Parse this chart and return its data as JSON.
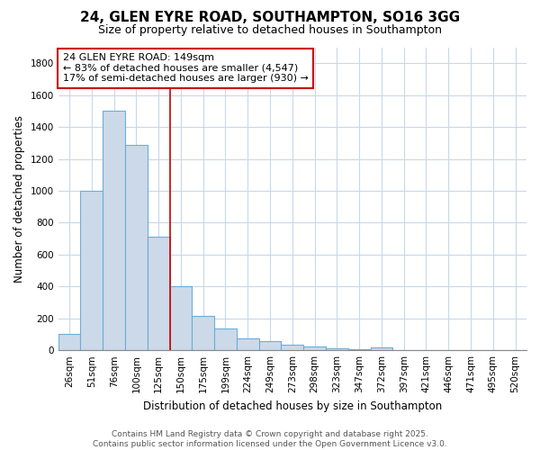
{
  "title_line1": "24, GLEN EYRE ROAD, SOUTHAMPTON, SO16 3GG",
  "title_line2": "Size of property relative to detached houses in Southampton",
  "xlabel": "Distribution of detached houses by size in Southampton",
  "ylabel": "Number of detached properties",
  "bar_color": "#ccd9e8",
  "bar_edge_color": "#6baed6",
  "categories": [
    "26sqm",
    "51sqm",
    "76sqm",
    "100sqm",
    "125sqm",
    "150sqm",
    "175sqm",
    "199sqm",
    "224sqm",
    "249sqm",
    "273sqm",
    "298sqm",
    "323sqm",
    "347sqm",
    "372sqm",
    "397sqm",
    "421sqm",
    "446sqm",
    "471sqm",
    "495sqm",
    "520sqm"
  ],
  "values": [
    105,
    1000,
    1500,
    1290,
    710,
    400,
    215,
    135,
    75,
    60,
    35,
    25,
    15,
    5,
    18,
    0,
    0,
    0,
    0,
    0,
    0
  ],
  "ylim": [
    0,
    1900
  ],
  "yticks": [
    0,
    200,
    400,
    600,
    800,
    1000,
    1200,
    1400,
    1600,
    1800
  ],
  "property_line_index": 5,
  "vline_color": "#cc0000",
  "annotation_title": "24 GLEN EYRE ROAD: 149sqm",
  "annotation_line1": "← 83% of detached houses are smaller (4,547)",
  "annotation_line2": "17% of semi-detached houses are larger (930) →",
  "annotation_box_color": "white",
  "annotation_border_color": "#cc0000",
  "footer_line1": "Contains HM Land Registry data © Crown copyright and database right 2025.",
  "footer_line2": "Contains public sector information licensed under the Open Government Licence v3.0.",
  "background_color": "#ffffff",
  "plot_bg_color": "#ffffff",
  "grid_color": "#c8d8e8",
  "title_fontsize": 11,
  "subtitle_fontsize": 9,
  "axis_label_fontsize": 8.5,
  "tick_fontsize": 7.5,
  "footer_fontsize": 6.5
}
